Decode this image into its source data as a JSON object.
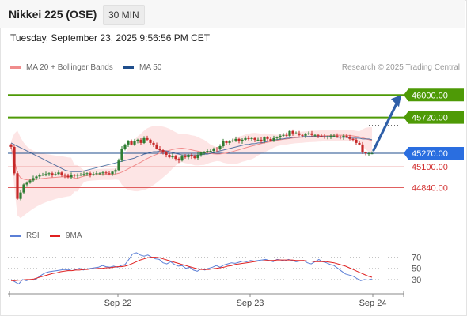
{
  "header": {
    "symbol": "Nikkei 225 (OSE)",
    "interval": "30 MIN"
  },
  "timestamp": "Tuesday, September 23, 2025 9:56:56 PM CET",
  "legend": {
    "items": [
      {
        "label": "MA 20 + Bollinger Bands",
        "color": "#f08c8c"
      },
      {
        "label": "MA 50",
        "color": "#1f4e8c"
      }
    ],
    "credit": "Research © 2025 Trading Central"
  },
  "rsi_legend": {
    "items": [
      {
        "label": "RSI",
        "color": "#5b7fd6"
      },
      {
        "label": "9MA",
        "color": "#e02020"
      }
    ]
  },
  "colors": {
    "resistance": "#4e9a06",
    "pivot": "#1f4e8c",
    "support": "#e06060",
    "candle_up": "#2e7d32",
    "candle_down": "#c62828",
    "band_fill": "#fde2e2",
    "arrow": "#2f5fa8"
  },
  "chart_data": [
    {
      "type": "candlestick",
      "ylim": [
        44400,
        46250
      ],
      "x_ticks": [
        "Sep 22",
        "Sep 23",
        "Sep 24"
      ],
      "levels": [
        {
          "value": 46000,
          "label": "46000.00",
          "kind": "resistance"
        },
        {
          "value": 45720,
          "label": "45720.00",
          "kind": "resistance"
        },
        {
          "value": 45270,
          "label": "45270.00",
          "kind": "pivot"
        },
        {
          "value": 45100,
          "label": "45100.00",
          "kind": "support"
        },
        {
          "value": 44840,
          "label": "44840.00",
          "kind": "support"
        }
      ],
      "last_price": 45270,
      "forecast_target": 46000,
      "close": [
        45350,
        45020,
        44700,
        44780,
        44880,
        44900,
        44930,
        44960,
        44980,
        45000,
        45000,
        45010,
        45020,
        45000,
        45010,
        45030,
        45000,
        44990,
        44970,
        45000,
        44990,
        45000,
        45000,
        45010,
        45020,
        45000,
        45010,
        45020,
        45020,
        45030,
        45020,
        45010,
        45040,
        45060,
        45180,
        45330,
        45380,
        45420,
        45380,
        45420,
        45440,
        45400,
        45460,
        45440,
        45400,
        45380,
        45330,
        45310,
        45280,
        45250,
        45220,
        45240,
        45200,
        45180,
        45230,
        45220,
        45250,
        45230,
        45210,
        45250,
        45280,
        45280,
        45300,
        45300,
        45330,
        45320,
        45360,
        45420,
        45400,
        45420,
        45430,
        45450,
        45420,
        45440,
        45460,
        45450,
        45460,
        45440,
        45440,
        45420,
        45470,
        45450,
        45430,
        45460,
        45470,
        45490,
        45500,
        45490,
        45550,
        45520,
        45520,
        45500,
        45490,
        45510,
        45520,
        45500,
        45500,
        45490,
        45480,
        45470,
        45480,
        45490,
        45490,
        45480,
        45470,
        45490,
        45470,
        45450,
        45440,
        45400,
        45380,
        45280,
        45270,
        45270,
        45270
      ],
      "ma50": [
        45400,
        45380,
        45360,
        45340,
        45320,
        45300,
        45280,
        45260,
        45240,
        45220,
        45200,
        45180,
        45160,
        45140,
        45120,
        45100,
        45080,
        45060,
        45050,
        45040,
        45040,
        45040,
        45040,
        45050,
        45060,
        45070,
        45080,
        45090,
        45100,
        45110,
        45120,
        45130,
        45140,
        45150,
        45160,
        45170,
        45180,
        45190,
        45200,
        45210,
        45230,
        45240,
        45260,
        45270,
        45280,
        45290,
        45290,
        45300,
        45300,
        45300,
        45290,
        45280,
        45270,
        45260,
        45250,
        45250,
        45250,
        45250,
        45250,
        45250,
        45250,
        45260,
        45260,
        45270,
        45280,
        45290,
        45300,
        45310,
        45320,
        45330,
        45340,
        45350,
        45360,
        45370,
        45380,
        45380,
        45390,
        45390,
        45400,
        45400,
        45410,
        45420,
        45430,
        45440,
        45440,
        45450,
        45450,
        45460,
        45460,
        45470,
        45470,
        45470,
        45480,
        45480,
        45480,
        45480,
        45480,
        45480,
        45480,
        45480,
        45480,
        45480,
        45480,
        45470,
        45470,
        45470,
        45470,
        45460,
        45460,
        45460,
        45460,
        45450,
        45450,
        45450,
        45440
      ]
    },
    {
      "type": "line",
      "title": "RSI",
      "y_ticks": [
        70,
        50,
        30
      ],
      "ylim": [
        10,
        85
      ],
      "rsi": [
        30,
        26,
        22,
        30,
        28,
        30,
        29,
        33,
        38,
        42,
        44,
        45,
        46,
        47,
        48,
        47,
        49,
        48,
        50,
        47,
        49,
        50,
        51,
        52,
        55,
        53,
        52,
        54,
        52,
        55,
        57,
        66,
        76,
        78,
        74,
        72,
        74,
        70,
        67,
        66,
        60,
        58,
        62,
        57,
        54,
        55,
        50,
        52,
        47,
        45,
        49,
        47,
        50,
        52,
        55,
        52,
        56,
        58,
        60,
        59,
        61,
        63,
        62,
        64,
        63,
        64,
        65,
        66,
        64,
        62,
        66,
        65,
        63,
        66,
        64,
        62,
        63,
        64,
        60,
        58,
        62,
        66,
        62,
        60,
        57,
        55,
        50,
        45,
        40,
        38,
        36,
        32,
        28,
        30,
        29,
        31
      ],
      "ma9": [
        28,
        28,
        29,
        29,
        30,
        30,
        31,
        33,
        35,
        37,
        39,
        41,
        42,
        44,
        45,
        46,
        46,
        47,
        47,
        48,
        48,
        49,
        49,
        50,
        50,
        51,
        51,
        52,
        53,
        53,
        54,
        56,
        59,
        62,
        65,
        67,
        69,
        70,
        70,
        69,
        67,
        65,
        63,
        61,
        59,
        57,
        55,
        53,
        51,
        49,
        48,
        48,
        48,
        49,
        50,
        51,
        52,
        54,
        55,
        57,
        58,
        59,
        60,
        61,
        62,
        63,
        63,
        64,
        64,
        64,
        65,
        65,
        65,
        65,
        65,
        64,
        64,
        64,
        63,
        63,
        62,
        62,
        62,
        62,
        61,
        60,
        58,
        56,
        54,
        51,
        48,
        45,
        42,
        39,
        36,
        34
      ]
    }
  ]
}
